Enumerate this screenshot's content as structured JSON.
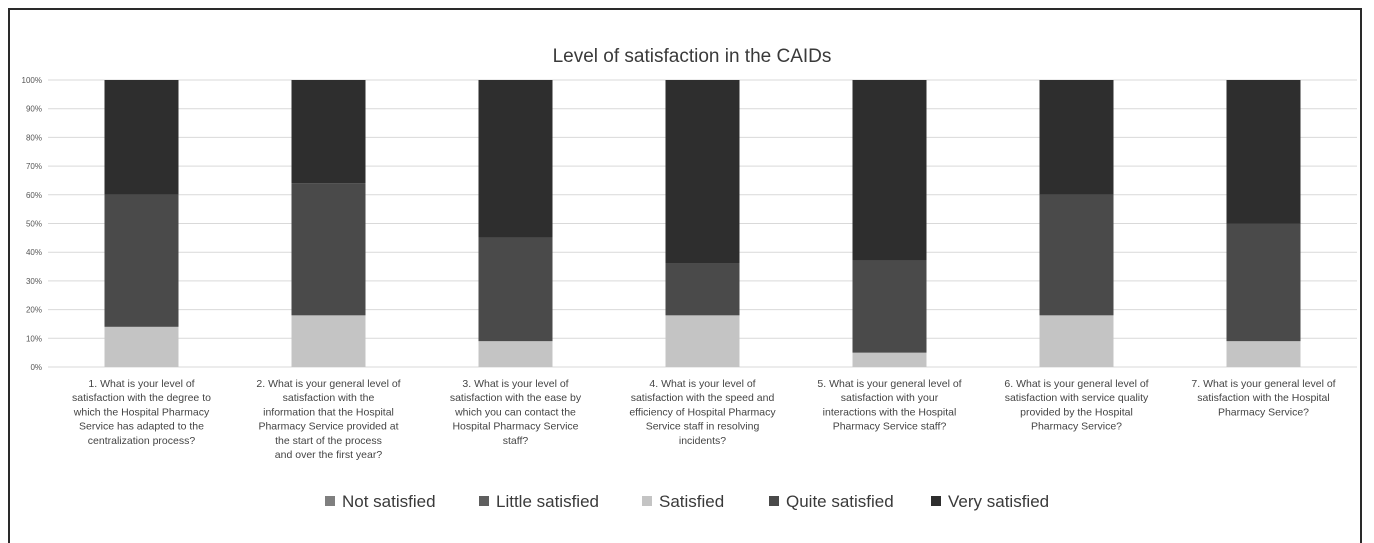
{
  "chart_data": {
    "type": "bar",
    "stacked": true,
    "title": "Level of satisfaction in the CAIDs",
    "xlabel": "",
    "ylabel": "",
    "ylim": [
      0,
      100
    ],
    "yticks": [
      "0%",
      "10%",
      "20%",
      "30%",
      "40%",
      "50%",
      "60%",
      "70%",
      "80%",
      "90%",
      "100%"
    ],
    "grid": true,
    "legend_position": "bottom",
    "categories": [
      "1. What is your level of satisfaction with the degree to which the Hospital Pharmacy Service has adapted to the centralization process?",
      "2. What is your general level of satisfaction with the information that the Hospital Pharmacy Service provided at the start of the process and over the first year?",
      "3. What is your level of satisfaction with the ease by which you can contact the Hospital Pharmacy Service staff?",
      "4. What is your level of satisfaction with the speed and efficiency of Hospital Pharmacy Service staff in resolving incidents?",
      "5. What is your general level of satisfaction with your interactions with the Hospital Pharmacy Service staff?",
      "6. What is your general level of satisfaction with service quality provided by the Hospital Pharmacy Service?",
      "7. What is your general level of satisfaction with the Hospital Pharmacy Service?"
    ],
    "category_lines": [
      [
        "1. What is your level of",
        "satisfaction with the degree to",
        "which the Hospital Pharmacy",
        "Service has adapted to the",
        "centralization process?"
      ],
      [
        "2. What is your general level of",
        "satisfaction with the",
        "information that the Hospital",
        "Pharmacy Service provided at",
        "the start of the process",
        "and over the first year?"
      ],
      [
        "3. What is your level of",
        "satisfaction with the ease by",
        "which you can contact the",
        "Hospital Pharmacy Service",
        "staff?"
      ],
      [
        "4. What is your level of",
        "satisfaction with the speed and",
        "efficiency of Hospital Pharmacy",
        "Service staff in resolving",
        "incidents?"
      ],
      [
        "5. What is your general level of",
        "satisfaction with your",
        "interactions with the Hospital",
        "Pharmacy Service staff?"
      ],
      [
        "6. What is your general level of",
        "satisfaction with service quality",
        "provided by the Hospital",
        "Pharmacy Service?"
      ],
      [
        "7. What is your general level of",
        "satisfaction with the Hospital",
        "Pharmacy Service?"
      ]
    ],
    "series": [
      {
        "name": "Not satisfied",
        "color": "#7f7f7f",
        "values": [
          0,
          0,
          0,
          0,
          0,
          0,
          0
        ]
      },
      {
        "name": "Little satisfied",
        "color": "#5f5f5f",
        "values": [
          0,
          0,
          0,
          0,
          0,
          0,
          0
        ]
      },
      {
        "name": "Satisfied",
        "color": "#c4c4c4",
        "values": [
          14,
          18,
          9,
          18,
          5,
          18,
          9
        ]
      },
      {
        "name": "Quite satisfied",
        "color": "#4a4a4a",
        "values": [
          46,
          46,
          36,
          18,
          32,
          42,
          41
        ]
      },
      {
        "name": "Very satisfied",
        "color": "#2e2e2e",
        "values": [
          40,
          36,
          55,
          64,
          63,
          40,
          50
        ]
      }
    ]
  }
}
